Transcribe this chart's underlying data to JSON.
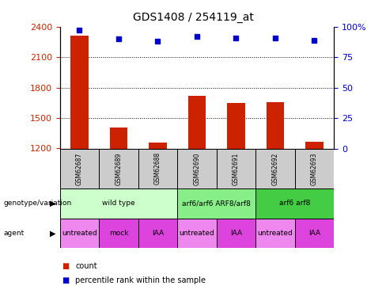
{
  "title": "GDS1408 / 254119_at",
  "samples": [
    "GSM62687",
    "GSM62689",
    "GSM62688",
    "GSM62690",
    "GSM62691",
    "GSM62692",
    "GSM62693"
  ],
  "counts": [
    2310,
    1405,
    1255,
    1720,
    1645,
    1655,
    1268
  ],
  "percentile": [
    97,
    90,
    88,
    92,
    91,
    91,
    89
  ],
  "ylim_left": [
    1200,
    2400
  ],
  "ylim_right": [
    0,
    100
  ],
  "yticks_left": [
    1200,
    1500,
    1800,
    2100,
    2400
  ],
  "yticks_right": [
    0,
    25,
    50,
    75,
    100
  ],
  "bar_color": "#cc2200",
  "dot_color": "#0000cc",
  "grid_color": "#000000",
  "genotype_groups": [
    {
      "label": "wild type",
      "start": 0,
      "end": 3,
      "color": "#ccffcc"
    },
    {
      "label": "arf6/arf6 ARF8/arf8",
      "start": 3,
      "end": 5,
      "color": "#88ee88"
    },
    {
      "label": "arf6 arf8",
      "start": 5,
      "end": 7,
      "color": "#44cc44"
    }
  ],
  "agent_groups": [
    {
      "label": "untreated",
      "start": 0,
      "end": 1,
      "color": "#ee88ee"
    },
    {
      "label": "mock",
      "start": 1,
      "end": 2,
      "color": "#dd44dd"
    },
    {
      "label": "IAA",
      "start": 2,
      "end": 3,
      "color": "#dd44dd"
    },
    {
      "label": "untreated",
      "start": 3,
      "end": 4,
      "color": "#ee88ee"
    },
    {
      "label": "IAA",
      "start": 4,
      "end": 5,
      "color": "#dd44dd"
    },
    {
      "label": "untreated",
      "start": 5,
      "end": 6,
      "color": "#ee88ee"
    },
    {
      "label": "IAA",
      "start": 6,
      "end": 7,
      "color": "#dd44dd"
    }
  ],
  "legend_count_color": "#cc2200",
  "legend_dot_color": "#0000cc",
  "left_axis_color": "#cc2200",
  "right_axis_color": "#0000cc",
  "sample_box_color": "#cccccc",
  "fig_width": 4.88,
  "fig_height": 3.75,
  "fig_dpi": 100
}
